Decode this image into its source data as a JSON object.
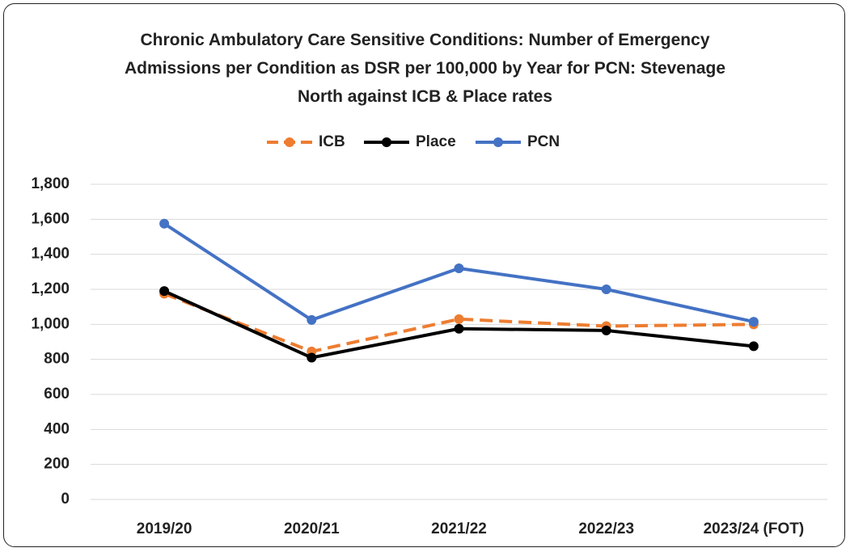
{
  "chart_data": {
    "type": "line",
    "title": "Chronic Ambulatory Care Sensitive Conditions: Number of Emergency Admissions per Condition as DSR per 100,000 by Year for PCN: Stevenage North against ICB & Place rates",
    "categories": [
      "2019/20",
      "2020/21",
      "2021/22",
      "2022/23",
      "2023/24 (FOT)"
    ],
    "series": [
      {
        "name": "ICB",
        "color": "#ed7d31",
        "dashed": true,
        "values": [
          1175,
          845,
          1030,
          990,
          1000
        ]
      },
      {
        "name": "Place",
        "color": "#000000",
        "dashed": false,
        "values": [
          1190,
          810,
          975,
          965,
          875
        ]
      },
      {
        "name": "PCN",
        "color": "#4472c4",
        "dashed": false,
        "values": [
          1575,
          1025,
          1320,
          1200,
          1015
        ]
      }
    ],
    "ylim": [
      0,
      1800
    ],
    "yticks": [
      0,
      200,
      400,
      600,
      800,
      {
        "value": 1000,
        "label": "1,000"
      },
      {
        "value": 1200,
        "label": "1,200"
      },
      {
        "value": 1400,
        "label": "1,400"
      },
      {
        "value": 1600,
        "label": "1,600"
      },
      {
        "value": 1800,
        "label": "1,800"
      }
    ],
    "grid": true,
    "legend": "top"
  }
}
